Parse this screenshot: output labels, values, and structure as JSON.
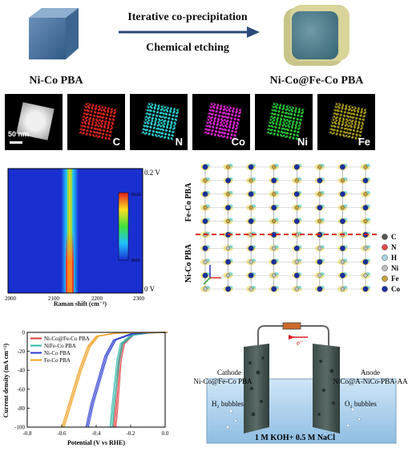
{
  "synthesis": {
    "step1": "Iterative co-precipitation",
    "step2": "Chemical etching",
    "left_label": "Ni-Co PBA",
    "right_label": "Ni-Co@Fe-Co PBA"
  },
  "edx": {
    "scale_bar": "50 nm",
    "tiles": [
      {
        "element": "C",
        "color": "#e0261f"
      },
      {
        "element": "N",
        "color": "#2ad4d4"
      },
      {
        "element": "Co",
        "color": "#e327d6"
      },
      {
        "element": "Ni",
        "color": "#28c838"
      },
      {
        "element": "Fe",
        "color": "#e6d21e"
      }
    ]
  },
  "raman": {
    "xlabel": "Raman shift (cm⁻¹)",
    "xticks": [
      "2000",
      "2100",
      "2200",
      "2300"
    ],
    "top_voltage": "0.2 V",
    "bottom_voltage": "0 V",
    "cbar_max": "max",
    "cbar_min": "min"
  },
  "structure": {
    "upper_label": "Fe-Co PBA",
    "lower_label": "Ni-Co PBA",
    "legend": [
      {
        "name": "C",
        "color": "#555555"
      },
      {
        "name": "N",
        "color": "#e04848"
      },
      {
        "name": "H",
        "color": "#a8d8e8"
      },
      {
        "name": "Ni",
        "color": "#bfbfbf"
      },
      {
        "name": "Fe",
        "color": "#c8a040"
      },
      {
        "name": "Co",
        "color": "#1a2fa0"
      }
    ]
  },
  "chart_data": {
    "type": "line",
    "xlabel": "Potential (V vs RHE)",
    "ylabel": "Current density (mA cm⁻²)",
    "xlim": [
      -0.8,
      0.0
    ],
    "ylim": [
      -100,
      0
    ],
    "xticks": [
      "-0.8",
      "-0.6",
      "-0.4",
      "-0.2",
      "0.0"
    ],
    "yticks": [
      "0",
      "-20",
      "-40",
      "-60",
      "-80",
      "-100"
    ],
    "legend_position": "top-left",
    "series": [
      {
        "name": "Ni-Co@Fe-Co PBA",
        "color": "#e23a3a",
        "x": [
          0.0,
          -0.1,
          -0.2,
          -0.25,
          -0.27,
          -0.28,
          -0.29,
          -0.3
        ],
        "y": [
          0,
          -0.5,
          -3,
          -12,
          -30,
          -55,
          -80,
          -100
        ]
      },
      {
        "name": "NiFe-Co PBA",
        "color": "#2bb8a8",
        "x": [
          0.0,
          -0.1,
          -0.2,
          -0.26,
          -0.28,
          -0.295,
          -0.31,
          -0.32
        ],
        "y": [
          0,
          -0.5,
          -3,
          -12,
          -30,
          -55,
          -80,
          -100
        ]
      },
      {
        "name": "Ni-Co PBA",
        "color": "#2a3ad0",
        "x": [
          0.0,
          -0.1,
          -0.2,
          -0.3,
          -0.35,
          -0.39,
          -0.43,
          -0.46
        ],
        "y": [
          0,
          -0.3,
          -1.5,
          -8,
          -25,
          -50,
          -75,
          -100
        ]
      },
      {
        "name": "Fe-Co PBA",
        "color": "#f0a020",
        "x": [
          0.0,
          -0.1,
          -0.2,
          -0.3,
          -0.4,
          -0.45,
          -0.5,
          -0.55,
          -0.6
        ],
        "y": [
          0,
          -0.1,
          -0.3,
          -1,
          -4,
          -15,
          -40,
          -70,
          -100
        ]
      }
    ]
  },
  "cell": {
    "electron": "e⁻",
    "cathode_title": "Cathode",
    "cathode_name": "Ni-Co@Fe-Co PBA",
    "anode_title": "Anode",
    "anode_name": "NiCo@A-NiCo-PBA-AA",
    "h2": "H₂ bubbles",
    "o2": "O₂ bubbles",
    "electrolyte": "1 M KOH+ 0.5 M NaCl"
  }
}
